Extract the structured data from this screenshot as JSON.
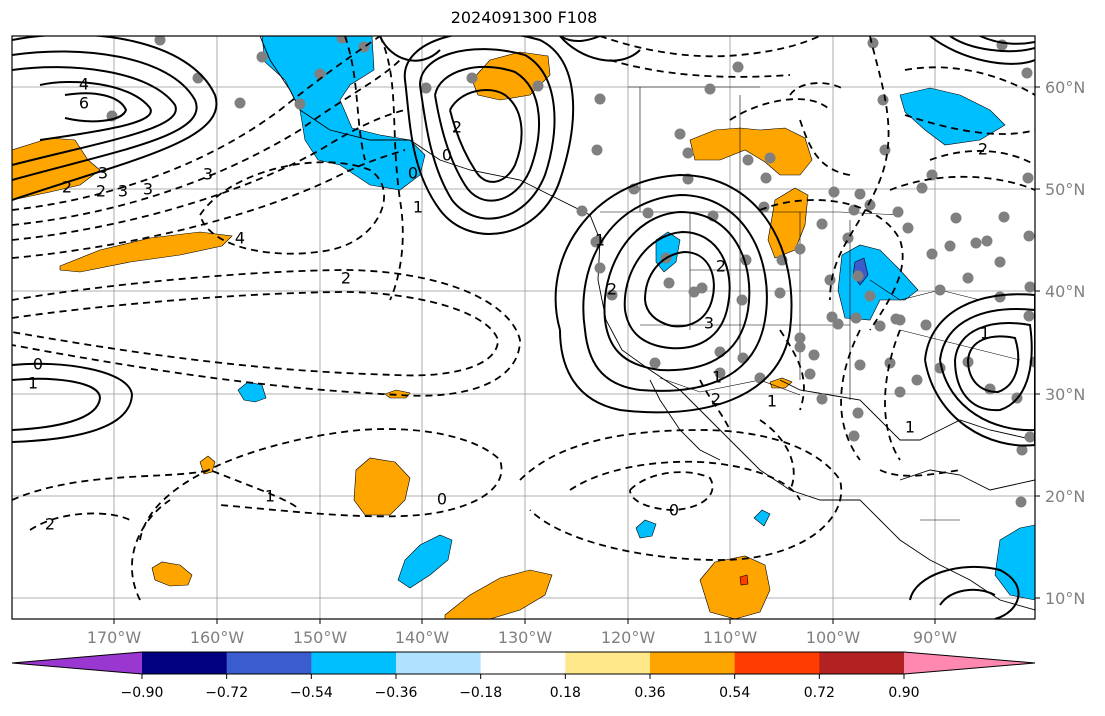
{
  "title": "2024091300 F108",
  "lon_ticks": [
    "170°W",
    "160°W",
    "150°W",
    "140°W",
    "130°W",
    "120°W",
    "110°W",
    "100°W",
    "90°W"
  ],
  "lat_ticks": [
    "60°N",
    "50°N",
    "40°N",
    "30°N",
    "20°N",
    "10°N"
  ],
  "colorbar": {
    "tick_labels": [
      "−0.90",
      "−0.72",
      "−0.54",
      "−0.36",
      "−0.18",
      "0.18",
      "0.36",
      "0.54",
      "0.72",
      "0.90"
    ],
    "colors": [
      "#9a37d0",
      "#000080",
      "#3a5ccc",
      "#00bfff",
      "#b0e2ff",
      "#ffffff",
      "#ffe88a",
      "#ffa500",
      "#ff3d00",
      "#b22222",
      "#ff88b0"
    ]
  },
  "contour_labels": [
    "4",
    "6",
    "3",
    "2",
    "0",
    "1",
    "3",
    "4",
    "2",
    "0",
    "1",
    "2",
    "1",
    "2",
    "3",
    "1",
    "2",
    "0",
    "1",
    "2",
    "1",
    "2",
    "0",
    "0",
    "1",
    "2",
    "3",
    "3",
    "2",
    "1"
  ],
  "colors": {
    "solid_contour": "#000000",
    "dashed_contour": "#000000",
    "grid": "#999999",
    "station": "#808080",
    "orange": "#ffa500",
    "cyan": "#00bfff",
    "blue": "#3a5ccc",
    "red": "#ff3d00"
  }
}
